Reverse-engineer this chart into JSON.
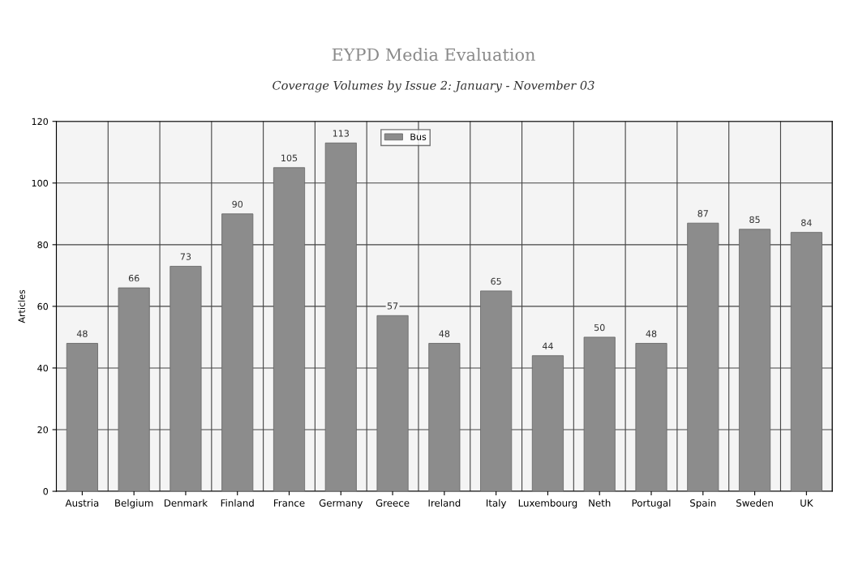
{
  "chart_data": {
    "type": "bar",
    "title": "EYPD Media Evaluation",
    "subtitle": "Coverage Volumes by Issue 2: January - November 03",
    "ylabel": "Articles",
    "categories": [
      "Austria",
      "Belgium",
      "Denmark",
      "Finland",
      "France",
      "Germany",
      "Greece",
      "Ireland",
      "Italy",
      "Luxembourg",
      "Neth",
      "Portugal",
      "Spain",
      "Sweden",
      "UK"
    ],
    "series": [
      {
        "name": "Bus",
        "color": "#8c8c8c",
        "values": [
          48,
          66,
          73,
          90,
          105,
          113,
          57,
          48,
          65,
          44,
          50,
          48,
          87,
          85,
          84
        ]
      }
    ],
    "ylim": [
      0,
      120
    ],
    "yticks": [
      0,
      20,
      40,
      60,
      80,
      100,
      120
    ],
    "grid": true,
    "legend": "top",
    "data_labels": true
  }
}
